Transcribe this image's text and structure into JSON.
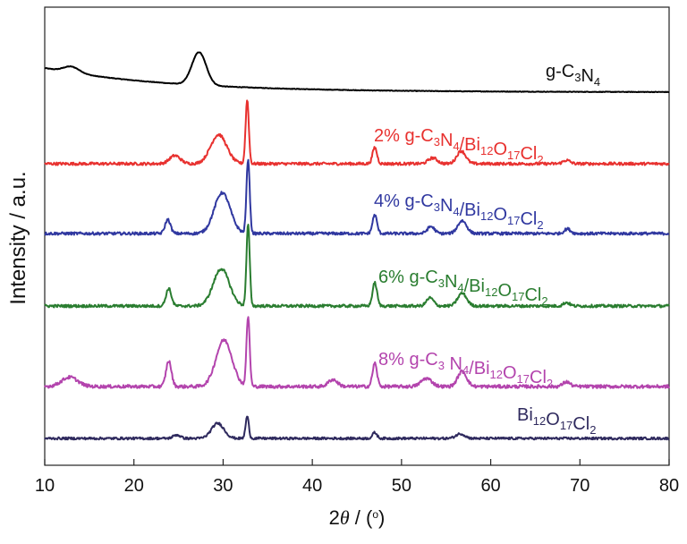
{
  "chart_data": {
    "type": "line",
    "xlabel": "2θ / (°)",
    "xlabel_parts": {
      "pre": "2",
      "theta": "θ",
      "mid": " / (",
      "deg": "o",
      "post": ")"
    },
    "ylabel": "Intensity / a.u.",
    "xlim": [
      10,
      80
    ],
    "x_ticks": [
      "10",
      "20",
      "30",
      "40",
      "50",
      "60",
      "70",
      "80"
    ],
    "grid": false,
    "legend": "labels placed beside each curve",
    "series": [
      {
        "name": "g-C3N4",
        "label_parts": [
          [
            "g-C",
            "n"
          ],
          [
            "3",
            "s"
          ],
          [
            "N",
            "n"
          ],
          [
            "4",
            "s"
          ]
        ],
        "color": "#000000",
        "baseline": 1.0,
        "slope": 0.0,
        "noise": 0.004,
        "peaks": [
          [
            13.0,
            0.9,
            0.085
          ],
          [
            27.3,
            0.8,
            0.46
          ]
        ]
      },
      {
        "name": "2% g-C3N4/Bi12O17Cl2",
        "label_parts": [
          [
            "2% g-C",
            "n"
          ],
          [
            "3",
            "s"
          ],
          [
            "N",
            "n"
          ],
          [
            "4",
            "s"
          ],
          [
            "/Bi",
            "n"
          ],
          [
            "12",
            "s"
          ],
          [
            "O",
            "n"
          ],
          [
            "17",
            "s"
          ],
          [
            "Cl",
            "n"
          ],
          [
            "2",
            "s"
          ]
        ],
        "color": "#e8312f",
        "baseline": 0.0,
        "slope": 0.0,
        "noise": 0.012,
        "peaks": [
          [
            24.6,
            0.6,
            0.07
          ],
          [
            29.5,
            0.9,
            0.25
          ],
          [
            32.7,
            0.18,
            0.55
          ],
          [
            47.0,
            0.25,
            0.14
          ],
          [
            53.5,
            0.5,
            0.05
          ],
          [
            56.7,
            0.5,
            0.11
          ],
          [
            68.5,
            0.4,
            0.03
          ]
        ]
      },
      {
        "name": "4% g-C3N4/Bi12O17Cl2",
        "label_parts": [
          [
            "4% g-C",
            "n"
          ],
          [
            "3",
            "s"
          ],
          [
            "N",
            "n"
          ],
          [
            "4",
            "s"
          ],
          [
            "/Bi",
            "n"
          ],
          [
            "12",
            "s"
          ],
          [
            "O",
            "n"
          ],
          [
            "17",
            "s"
          ],
          [
            "Cl",
            "n"
          ],
          [
            "2",
            "s"
          ]
        ],
        "color": "#3038a0",
        "baseline": 0.0,
        "slope": 0.0,
        "noise": 0.012,
        "peaks": [
          [
            23.8,
            0.3,
            0.12
          ],
          [
            29.9,
            0.9,
            0.35
          ],
          [
            32.8,
            0.18,
            0.64
          ],
          [
            47.0,
            0.25,
            0.16
          ],
          [
            53.3,
            0.4,
            0.06
          ],
          [
            56.8,
            0.5,
            0.11
          ],
          [
            68.6,
            0.35,
            0.04
          ]
        ]
      },
      {
        "name": "6% g-C3N4/Bi12O17Cl2",
        "label_parts": [
          [
            "6% g-C",
            "n"
          ],
          [
            "3",
            "s"
          ],
          [
            "N",
            "n"
          ],
          [
            "4",
            "s"
          ],
          [
            "/Bi",
            "n"
          ],
          [
            "12",
            "s"
          ],
          [
            "O",
            "n"
          ],
          [
            "17",
            "s"
          ],
          [
            "Cl",
            "n"
          ],
          [
            "2",
            "s"
          ]
        ],
        "color": "#2a7d30",
        "baseline": 0.0,
        "slope": 0.0,
        "noise": 0.012,
        "peaks": [
          [
            23.9,
            0.3,
            0.15
          ],
          [
            29.8,
            0.9,
            0.32
          ],
          [
            32.8,
            0.18,
            0.7
          ],
          [
            47.0,
            0.25,
            0.2
          ],
          [
            53.2,
            0.4,
            0.07
          ],
          [
            56.8,
            0.5,
            0.11
          ],
          [
            68.5,
            0.35,
            0.03
          ]
        ]
      },
      {
        "name": "8% g-C3 N4/Bi12O17Cl2",
        "label_parts": [
          [
            "8% g-C",
            "n"
          ],
          [
            "3",
            "s"
          ],
          [
            " N",
            "n"
          ],
          [
            "4",
            "s"
          ],
          [
            "/Bi",
            "n"
          ],
          [
            "12",
            "s"
          ],
          [
            "O",
            "n"
          ],
          [
            "17",
            "s"
          ],
          [
            "Cl",
            "n"
          ],
          [
            "2",
            "s"
          ]
        ],
        "color": "#b344ad",
        "baseline": 0.0,
        "slope": 0.0,
        "noise": 0.014,
        "peaks": [
          [
            12.8,
            0.9,
            0.08
          ],
          [
            23.9,
            0.3,
            0.22
          ],
          [
            30.1,
            0.9,
            0.4
          ],
          [
            32.8,
            0.18,
            0.6
          ],
          [
            42.3,
            0.5,
            0.06
          ],
          [
            47.0,
            0.25,
            0.2
          ],
          [
            52.8,
            0.6,
            0.07
          ],
          [
            56.8,
            0.5,
            0.13
          ],
          [
            68.5,
            0.4,
            0.04
          ]
        ]
      },
      {
        "name": "Bi12O17Cl2",
        "label_parts": [
          [
            "Bi",
            "n"
          ],
          [
            "12",
            "s"
          ],
          [
            "O",
            "n"
          ],
          [
            "17",
            "s"
          ],
          [
            "Cl",
            "n"
          ],
          [
            "2",
            "s"
          ]
        ],
        "color": "#2f2a5e",
        "baseline": 0.0,
        "slope": 0.0,
        "noise": 0.01,
        "peaks": [
          [
            24.8,
            0.4,
            0.03
          ],
          [
            29.4,
            0.7,
            0.13
          ],
          [
            32.7,
            0.18,
            0.19
          ],
          [
            47.0,
            0.25,
            0.05
          ],
          [
            56.6,
            0.5,
            0.04
          ]
        ]
      }
    ]
  }
}
